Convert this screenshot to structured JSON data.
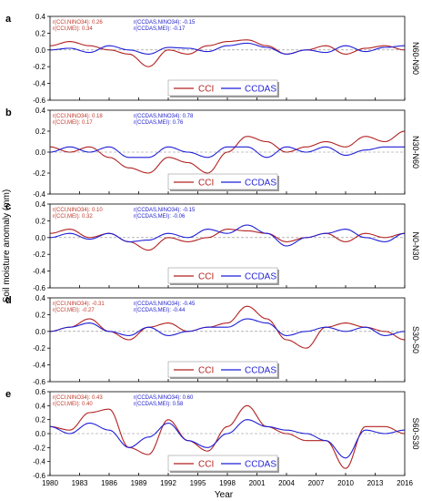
{
  "figure": {
    "xlabel": "Year",
    "ylabel": "Soil moisture anomaly (mm)",
    "x_ticks": [
      1980,
      1983,
      1986,
      1989,
      1992,
      1995,
      1998,
      2001,
      2004,
      2007,
      2010,
      2013,
      2016
    ],
    "y_ticks": [
      -0.6,
      -0.4,
      -0.2,
      0.0,
      0.2,
      0.4,
      0.6
    ],
    "y_ticks_top": [
      -0.6,
      -0.4,
      -0.2,
      0.0,
      0.2,
      0.4
    ]
  },
  "colors": {
    "cci": "#b22222",
    "ccdas": "#1f1fd6",
    "cci_text": "#c0392b",
    "ccdas_text": "#2222cc",
    "frame": "#000000"
  },
  "legend": {
    "cci": "CCI",
    "ccdas": "CCDAS"
  },
  "chart_data": [
    {
      "type": "line",
      "panel": "a",
      "region": "N60-N90",
      "ylim": [
        -0.6,
        0.4
      ],
      "stats": {
        "cci_nino": "r(CCI,NINO34):  0.26",
        "cci_mei": "r(CCI,MEI):  0.34",
        "ccdas_nino": "r(CCDAS,NINO34): -0.15",
        "ccdas_mei": "r(CCDAS,MEI): -0.17"
      },
      "x": [
        1980,
        1982,
        1984,
        1986,
        1988,
        1990,
        1992,
        1994,
        1996,
        1998,
        2000,
        2002,
        2004,
        2006,
        2008,
        2010,
        2012,
        2014,
        2016
      ],
      "series": [
        {
          "name": "CCI",
          "values": [
            0.05,
            0.1,
            0.05,
            0.0,
            -0.05,
            -0.2,
            0.0,
            -0.05,
            0.05,
            0.1,
            0.12,
            0.05,
            -0.05,
            0.0,
            0.05,
            -0.05,
            0.02,
            0.05,
            0.0
          ]
        },
        {
          "name": "CCDAS",
          "values": [
            0.0,
            0.02,
            -0.03,
            0.05,
            0.0,
            -0.05,
            0.03,
            0.02,
            -0.02,
            0.05,
            0.08,
            0.03,
            -0.05,
            0.0,
            -0.03,
            0.05,
            -0.02,
            0.03,
            0.05
          ]
        }
      ]
    },
    {
      "type": "line",
      "panel": "b",
      "region": "N30-N60",
      "ylim": [
        -0.4,
        0.4
      ],
      "stats": {
        "cci_nino": "r(CCI,NINO34):  0.18",
        "cci_mei": "r(CCI,MEI):  0.17",
        "ccdas_nino": "r(CCDAS,NINO34):  0.78",
        "ccdas_mei": "r(CCDAS,MEI):  0.76"
      },
      "x": [
        1980,
        1982,
        1984,
        1986,
        1988,
        1990,
        1992,
        1994,
        1996,
        1998,
        2000,
        2002,
        2004,
        2006,
        2008,
        2010,
        2012,
        2014,
        2016
      ],
      "series": [
        {
          "name": "CCI",
          "values": [
            0.05,
            0.0,
            0.05,
            -0.05,
            -0.15,
            -0.2,
            -0.05,
            -0.1,
            -0.2,
            0.0,
            0.15,
            0.1,
            0.0,
            0.05,
            0.1,
            0.05,
            0.15,
            0.1,
            0.2
          ]
        },
        {
          "name": "CCDAS",
          "values": [
            0.0,
            0.05,
            0.0,
            0.05,
            -0.05,
            -0.05,
            0.05,
            0.0,
            -0.05,
            0.05,
            0.05,
            -0.05,
            0.05,
            0.0,
            0.05,
            -0.03,
            0.02,
            0.05,
            0.05
          ]
        }
      ]
    },
    {
      "type": "line",
      "panel": "c",
      "region": "N0-N30",
      "ylim": [
        -0.6,
        0.4
      ],
      "stats": {
        "cci_nino": "r(CCI,NINO34):  0.10",
        "cci_mei": "r(CCI,MEI):  0.32",
        "ccdas_nino": "r(CCDAS,NINO34): -0.15",
        "ccdas_mei": "r(CCDAS,MEI): -0.06"
      },
      "x": [
        1980,
        1982,
        1984,
        1986,
        1988,
        1990,
        1992,
        1994,
        1996,
        1998,
        2000,
        2002,
        2004,
        2006,
        2008,
        2010,
        2012,
        2014,
        2016
      ],
      "series": [
        {
          "name": "CCI",
          "values": [
            0.05,
            0.1,
            0.0,
            0.05,
            -0.05,
            -0.15,
            0.0,
            -0.05,
            0.0,
            0.1,
            0.08,
            0.05,
            -0.05,
            0.0,
            0.05,
            -0.05,
            0.05,
            0.0,
            0.05
          ]
        },
        {
          "name": "CCDAS",
          "values": [
            0.0,
            0.05,
            -0.02,
            0.05,
            -0.05,
            -0.03,
            0.05,
            0.0,
            0.1,
            0.05,
            0.15,
            0.05,
            -0.1,
            0.0,
            0.05,
            0.1,
            0.0,
            -0.05,
            0.05
          ]
        }
      ]
    },
    {
      "type": "line",
      "panel": "d",
      "region": "S30-S0",
      "ylim": [
        -0.6,
        0.4
      ],
      "stats": {
        "cci_nino": "r(CCI,NINO34): -0.31",
        "cci_mei": "r(CCI,MEI): -0.27",
        "ccdas_nino": "r(CCDAS,NINO34): -0.45",
        "ccdas_mei": "r(CCDAS,MEI): -0.44"
      },
      "x": [
        1980,
        1982,
        1984,
        1986,
        1988,
        1990,
        1992,
        1994,
        1996,
        1998,
        2000,
        2002,
        2004,
        2006,
        2008,
        2010,
        2012,
        2014,
        2016
      ],
      "series": [
        {
          "name": "CCI",
          "values": [
            0.0,
            0.05,
            0.15,
            0.0,
            -0.1,
            0.05,
            0.1,
            0.0,
            0.05,
            0.1,
            0.3,
            0.15,
            -0.1,
            -0.2,
            0.05,
            0.1,
            0.05,
            0.0,
            -0.1
          ]
        },
        {
          "name": "CCDAS",
          "values": [
            0.0,
            0.05,
            0.1,
            0.0,
            -0.05,
            0.05,
            -0.05,
            0.0,
            0.05,
            0.05,
            0.15,
            0.1,
            -0.05,
            0.0,
            0.05,
            0.0,
            0.05,
            -0.05,
            0.0
          ]
        }
      ]
    },
    {
      "type": "line",
      "panel": "e",
      "region": "S60-S30",
      "ylim": [
        -0.6,
        0.6
      ],
      "stats": {
        "cci_nino": "r(CCI,NINO34):  0.43",
        "cci_mei": "r(CCI,MEI):  0.40",
        "ccdas_nino": "r(CCDAS,NINO34):  0.60",
        "ccdas_mei": "r(CCDAS,MEI):  0.58"
      },
      "x": [
        1980,
        1982,
        1984,
        1986,
        1988,
        1990,
        1992,
        1994,
        1996,
        1998,
        2000,
        2002,
        2004,
        2006,
        2008,
        2010,
        2012,
        2014,
        2016
      ],
      "series": [
        {
          "name": "CCI",
          "values": [
            0.1,
            0.05,
            0.3,
            0.35,
            -0.2,
            -0.3,
            0.2,
            -0.1,
            -0.25,
            0.1,
            0.4,
            0.1,
            0.0,
            -0.1,
            -0.1,
            -0.5,
            0.1,
            0.1,
            0.0
          ]
        },
        {
          "name": "CCDAS",
          "values": [
            0.1,
            0.0,
            0.15,
            0.05,
            -0.2,
            -0.05,
            0.15,
            -0.1,
            -0.2,
            0.0,
            0.2,
            0.1,
            0.05,
            0.0,
            -0.1,
            -0.35,
            0.05,
            0.0,
            0.05
          ]
        }
      ]
    }
  ]
}
